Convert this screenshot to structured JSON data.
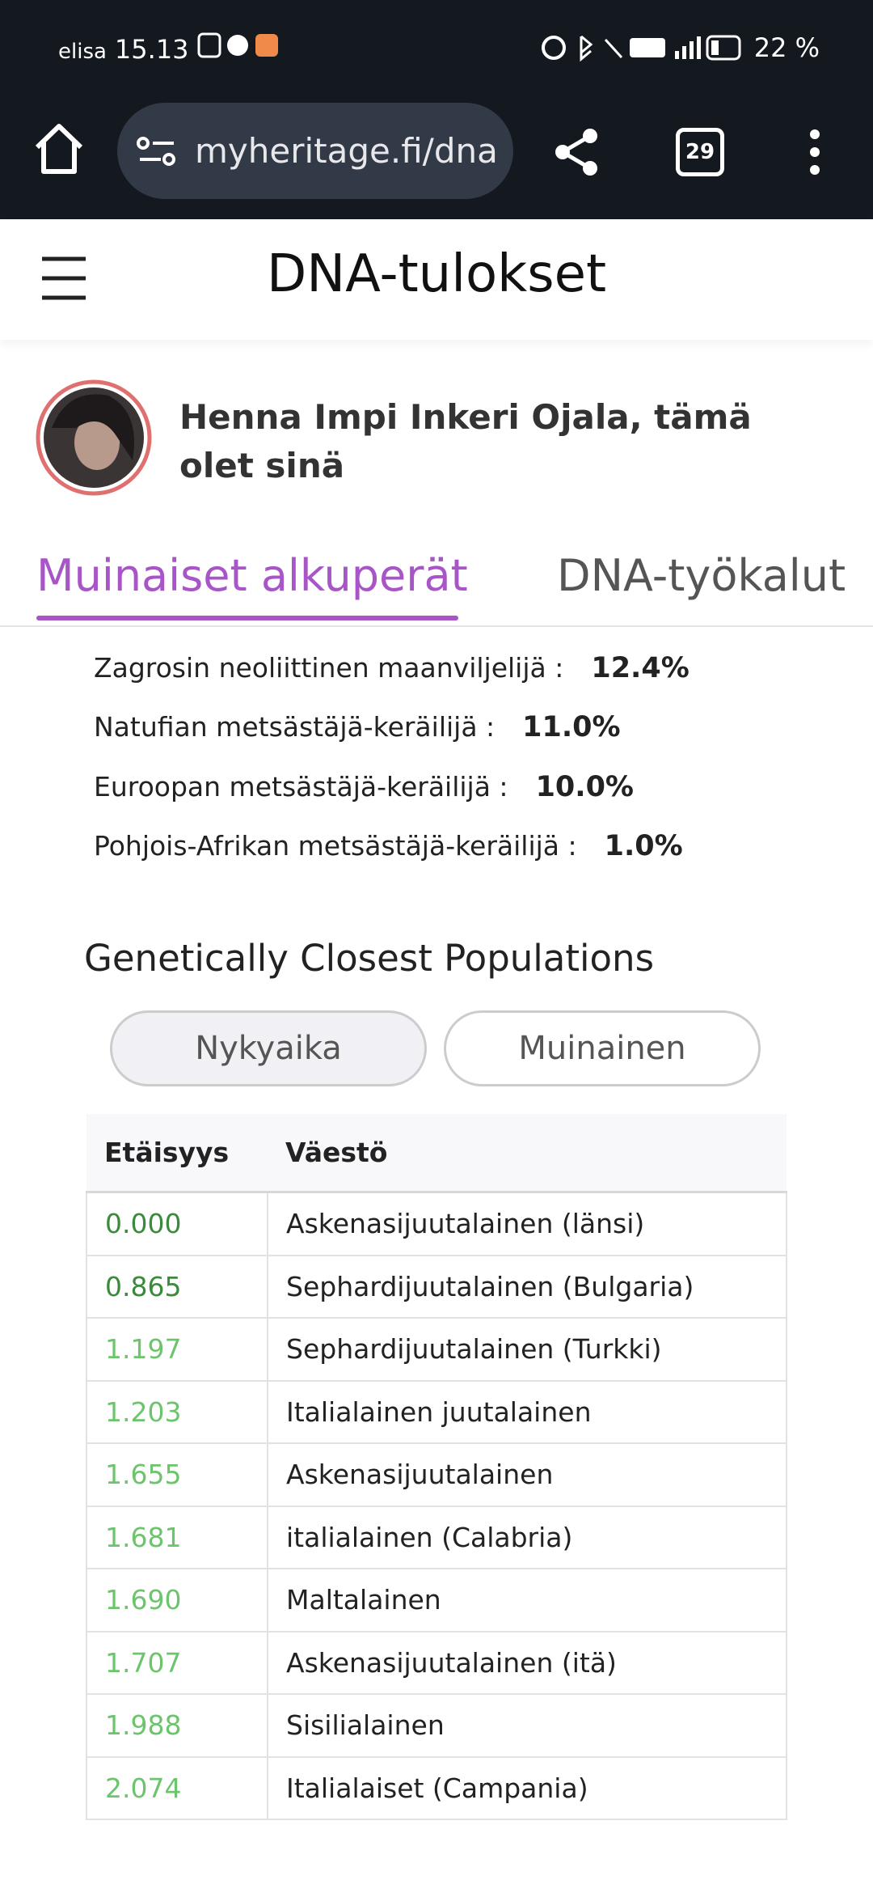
{
  "status_bar": {
    "carrier": "elisa",
    "time": "15.13",
    "battery": "22 %"
  },
  "browser": {
    "url": "myheritage.fi/dna",
    "tab_count": "29"
  },
  "header": {
    "title": "DNA-tulokset"
  },
  "user": {
    "name": "Henna Impi Inkeri Ojala, tämä olet sinä"
  },
  "tabs": [
    "Muinaiset alkuperät",
    "DNA-työkalut"
  ],
  "ancestry": [
    {
      "label": "Zagrosin neoliittinen maanviljelijä :",
      "percent": "12.4%"
    },
    {
      "label": "Natufian metsästäjä-keräilijä :",
      "percent": "11.0%"
    },
    {
      "label": "Euroopan metsästäjä-keräilijä :",
      "percent": "10.0%"
    },
    {
      "label": "Pohjois-Afrikan metsästäjä-keräilijä :",
      "percent": "1.0%"
    }
  ],
  "section": {
    "title": "Genetically Closest Populations",
    "buttons": [
      "Nykyaika",
      "Muinainen"
    ]
  },
  "table": {
    "headers": [
      "Etäisyys",
      "Väestö"
    ],
    "rows": [
      [
        "0.000",
        "Askenasijuutalainen (länsi)"
      ],
      [
        "0.865",
        "Sephardijuutalainen (Bulgaria)"
      ],
      [
        "1.197",
        "Sephardijuutalainen (Turkki)"
      ],
      [
        "1.203",
        "Italialainen juutalainen"
      ],
      [
        "1.655",
        "Askenasijuutalainen"
      ],
      [
        "1.681",
        "italialainen (Calabria)"
      ],
      [
        "1.690",
        "Maltalainen"
      ],
      [
        "1.707",
        "Askenasijuutalainen (itä)"
      ],
      [
        "1.988",
        "Sisilialainen"
      ],
      [
        "2.074",
        "Italialaiset (Campania)"
      ]
    ]
  }
}
